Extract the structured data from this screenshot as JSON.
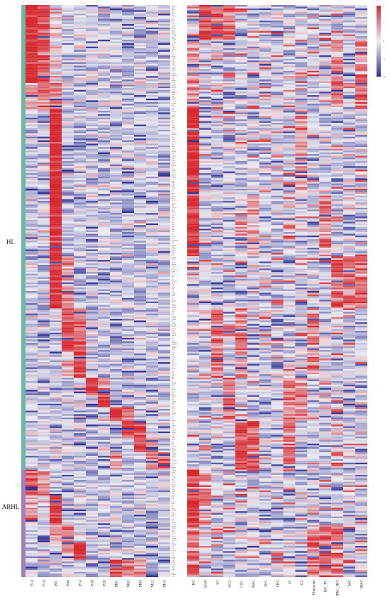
{
  "chart_data": [
    {
      "type": "heatmap",
      "title": "",
      "row_groups": [
        {
          "label": "HL",
          "color": "#6cb8a5",
          "row_start": 0,
          "row_end": 268
        },
        {
          "label": "ARHL",
          "color": "#a47fbc",
          "row_start": 268,
          "row_end": 330
        }
      ],
      "columns": [
        "E14",
        "E18",
        "P01",
        "P08",
        "P14",
        "P20",
        "P28",
        "M01",
        "M02",
        "M05",
        "M12",
        "M15"
      ],
      "n_rows": 330,
      "value_range": [
        -2,
        2
      ]
    },
    {
      "type": "heatmap",
      "title": "",
      "columns": [
        "HC",
        "SGN",
        "SC",
        "SGC",
        "CEC",
        "SMC",
        "BsC",
        "TBC",
        "IC",
        "CC",
        "Fibrocyte",
        "DC_PC",
        "IPhC_IBC",
        "MC",
        "RMC"
      ],
      "n_rows": 330,
      "value_range": [
        -2,
        2
      ]
    }
  ],
  "color_scale": {
    "low": "#2e3192",
    "mid": "#ebebf3",
    "high": "#d7282f",
    "ticks": [
      2,
      1,
      0,
      -1,
      -2
    ]
  }
}
